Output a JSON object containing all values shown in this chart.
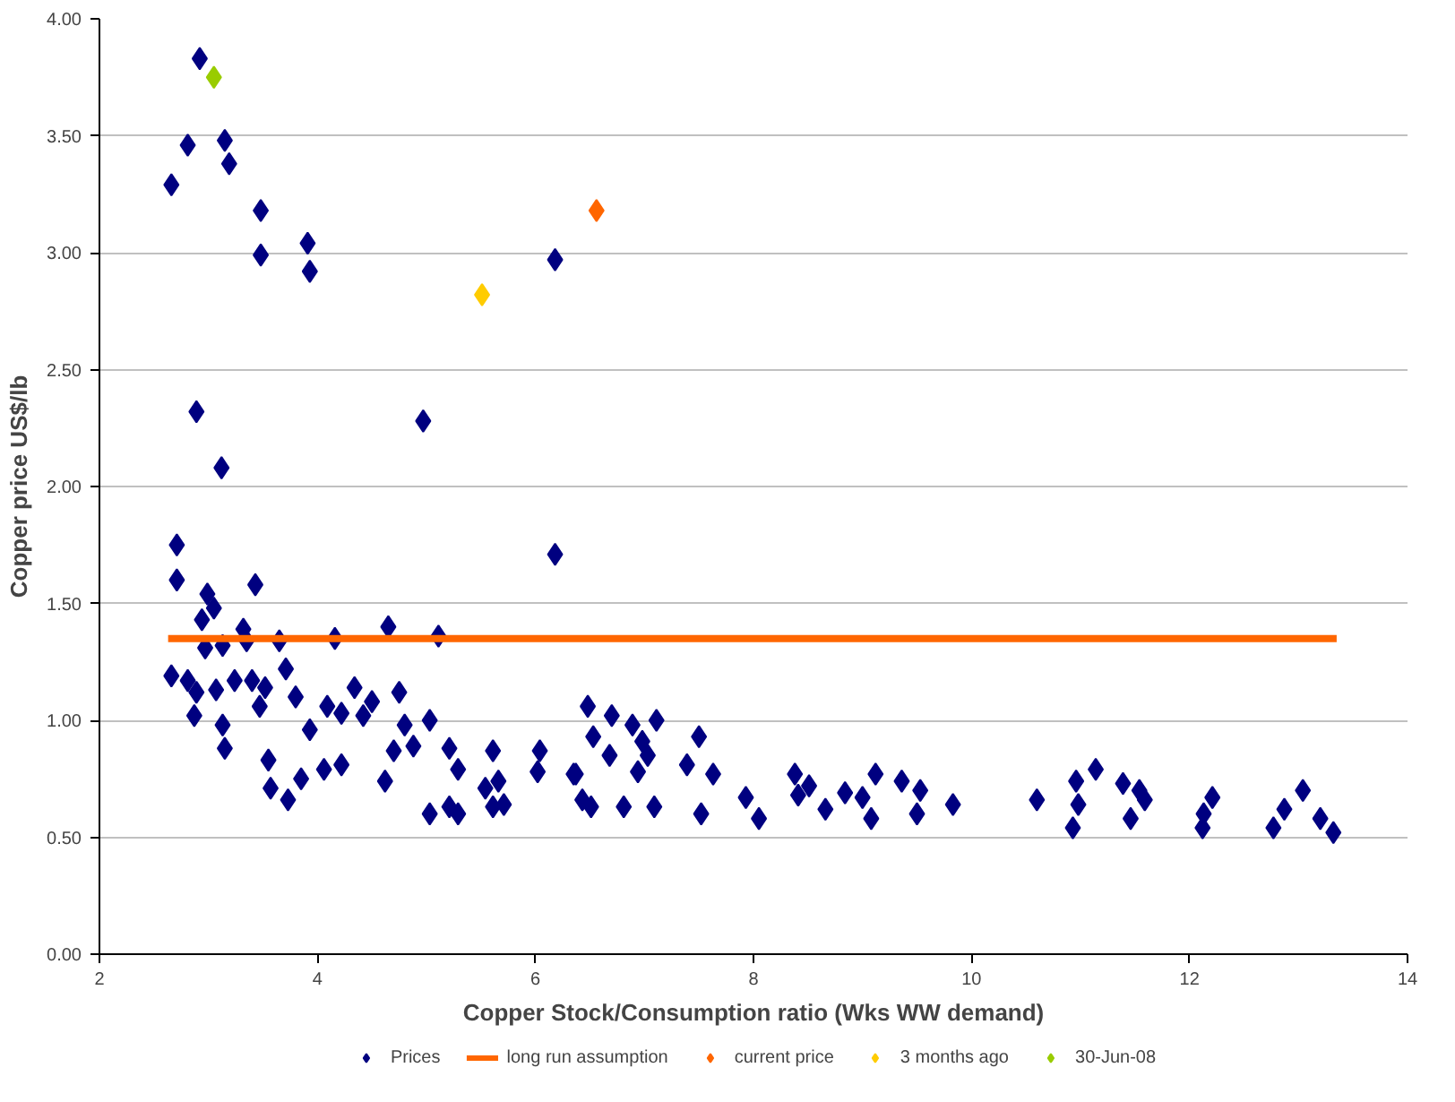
{
  "chart_data": {
    "type": "scatter",
    "xlabel": "Copper Stock/Consumption ratio (Wks WW demand)",
    "ylabel": "Copper price US$/lb",
    "xlim": [
      2,
      14
    ],
    "xticks": [
      2,
      4,
      6,
      8,
      10,
      12,
      14
    ],
    "ylim": [
      0,
      4
    ],
    "yticks": [
      {
        "value": 0,
        "label": "0.00"
      },
      {
        "value": 0.5,
        "label": "0.50"
      },
      {
        "value": 1,
        "label": "1.00"
      },
      {
        "value": 1.5,
        "label": "1.50"
      },
      {
        "value": 2,
        "label": "2.00"
      },
      {
        "value": 2.5,
        "label": "2.50"
      },
      {
        "value": 3,
        "label": "3.00"
      },
      {
        "value": 3.5,
        "label": "3.50"
      },
      {
        "value": 4,
        "label": "4.00"
      }
    ],
    "grid": "y",
    "legend": "bottom",
    "marker": "diamond",
    "series": [
      {
        "name": "Prices",
        "color": "#000080",
        "x": [
          2.92,
          2.81,
          3.15,
          3.19,
          2.66,
          3.48,
          3.48,
          3.91,
          3.93,
          6.18,
          2.89,
          4.97,
          3.12,
          2.71,
          6.18,
          2.71,
          3.43,
          4.16,
          4.65,
          5.11,
          2.99,
          3.05,
          2.94,
          3.13,
          3.32,
          3.35,
          2.97,
          3.65,
          3.71,
          2.66,
          2.81,
          2.89,
          3.07,
          3.24,
          3.4,
          3.52,
          3.47,
          3.8,
          2.87,
          3.13,
          3.15,
          3.93,
          3.55,
          3.57,
          3.73,
          3.85,
          4.09,
          4.22,
          4.34,
          4.42,
          4.5,
          4.06,
          4.22,
          4.75,
          4.8,
          4.7,
          4.62,
          5.03,
          4.88,
          5.21,
          5.29,
          5.03,
          5.21,
          5.29,
          5.61,
          5.54,
          5.66,
          5.71,
          5.61,
          6.04,
          6.02,
          6.35,
          6.43,
          6.51,
          6.48,
          6.53,
          6.7,
          6.89,
          7.11,
          6.68,
          6.98,
          6.94,
          7.03,
          6.37,
          6.81,
          7.09,
          7.5,
          7.39,
          7.63,
          7.52,
          7.93,
          8.05,
          8.38,
          8.51,
          8.41,
          8.66,
          8.84,
          9.0,
          9.12,
          9.08,
          9.36,
          9.53,
          9.5,
          9.83,
          10.6,
          10.96,
          11.14,
          10.98,
          10.93,
          11.39,
          11.54,
          11.59,
          11.46,
          12.21,
          12.13,
          12.12,
          12.77,
          12.87,
          13.04,
          13.2,
          13.32
        ],
        "values": [
          3.83,
          3.46,
          3.48,
          3.38,
          3.29,
          3.18,
          2.99,
          3.04,
          2.92,
          2.97,
          2.32,
          2.28,
          2.08,
          1.75,
          1.71,
          1.6,
          1.58,
          1.35,
          1.4,
          1.36,
          1.54,
          1.48,
          1.43,
          1.32,
          1.39,
          1.34,
          1.31,
          1.34,
          1.22,
          1.19,
          1.17,
          1.12,
          1.13,
          1.17,
          1.17,
          1.14,
          1.06,
          1.1,
          1.02,
          0.98,
          0.88,
          0.96,
          0.83,
          0.71,
          0.66,
          0.75,
          1.06,
          1.03,
          1.14,
          1.02,
          1.08,
          0.79,
          0.81,
          1.12,
          0.98,
          0.87,
          0.74,
          1.0,
          0.89,
          0.88,
          0.79,
          0.6,
          0.63,
          0.6,
          0.87,
          0.71,
          0.74,
          0.64,
          0.63,
          0.87,
          0.78,
          0.77,
          0.66,
          0.63,
          1.06,
          0.93,
          1.02,
          0.98,
          1.0,
          0.85,
          0.91,
          0.78,
          0.85,
          0.77,
          0.63,
          0.63,
          0.93,
          0.81,
          0.77,
          0.6,
          0.67,
          0.58,
          0.77,
          0.72,
          0.68,
          0.62,
          0.69,
          0.67,
          0.77,
          0.58,
          0.74,
          0.7,
          0.6,
          0.64,
          0.66,
          0.74,
          0.79,
          0.64,
          0.54,
          0.73,
          0.7,
          0.66,
          0.58,
          0.67,
          0.6,
          0.54,
          0.54,
          0.62,
          0.7,
          0.58,
          0.52
        ]
      },
      {
        "name": "long run assumption",
        "color": "#ff6600",
        "type": "line",
        "marker": "none",
        "x": [
          2.63,
          13.35
        ],
        "values": [
          1.35,
          1.35
        ]
      },
      {
        "name": "current price",
        "color": "#ff6600",
        "x": [
          6.56
        ],
        "values": [
          3.18
        ]
      },
      {
        "name": "3 months ago",
        "color": "#ffcc00",
        "x": [
          5.51
        ],
        "values": [
          2.82
        ]
      },
      {
        "name": "30-Jun-08",
        "color": "#99cc00",
        "x": [
          3.05
        ],
        "values": [
          3.75
        ]
      }
    ]
  }
}
